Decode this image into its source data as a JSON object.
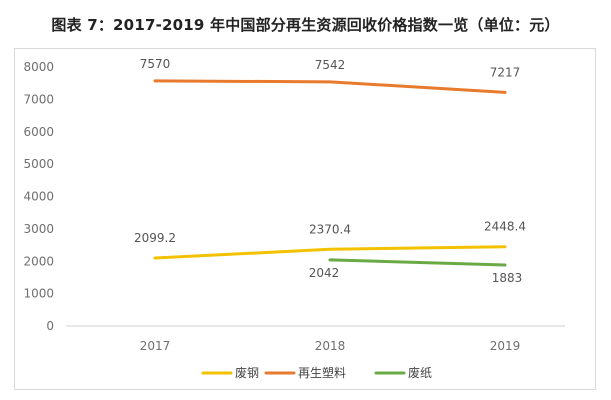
{
  "title": "图表 7：2017-2019 年中国部分再生资源回收价格指数一览（单位：元）",
  "chart_data": {
    "type": "line",
    "title": "图表 7：2017-2019 年中国部分再生资源回收价格指数一览（单位：元）",
    "categories": [
      "2017",
      "2018",
      "2019"
    ],
    "ylim": [
      0,
      8000
    ],
    "yticks": [
      0,
      1000,
      2000,
      3000,
      4000,
      5000,
      6000,
      7000,
      8000
    ],
    "grid": false,
    "legend": "bottom",
    "series": [
      {
        "name": "废钢",
        "color": "#f2c200",
        "values": [
          2099.2,
          2370.4,
          2448.4
        ],
        "labels": [
          "2099.2",
          "2370.4",
          "2448.4"
        ]
      },
      {
        "name": "再生塑料",
        "color": "#e87a2d",
        "values": [
          7570,
          7542,
          7217
        ],
        "labels": [
          "7570",
          "7542",
          "7217"
        ]
      },
      {
        "name": "废纸",
        "color": "#6aaa45",
        "values": [
          null,
          2042,
          1883
        ],
        "labels": [
          "",
          "2042",
          "1883"
        ]
      }
    ]
  }
}
